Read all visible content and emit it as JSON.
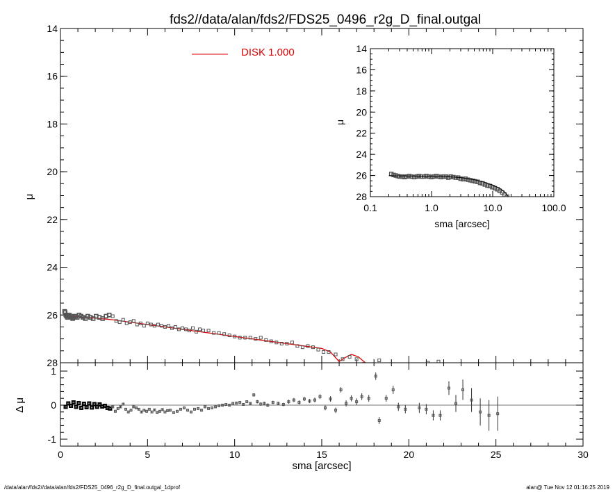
{
  "title": "fds2//data/alan/fds2/FDS25_0496_r2g_D_final.outgal",
  "footer": {
    "left": "/data/alan/fds2//data/alan/fds2/FDS25_0496_r2g_D_final.outgal_1dprof",
    "right": "alan@  Tue Nov 12 01:16:25 2019"
  },
  "colors": {
    "model": "#dd0000",
    "data": "#555555",
    "frame": "#000000"
  },
  "chart_data": [
    {
      "type": "scatter",
      "panel": "main",
      "xlabel": "",
      "ylabel": "μ",
      "xlim": [
        0,
        30
      ],
      "ylim": [
        28,
        14
      ],
      "yticks": [
        "14",
        "16",
        "18",
        "20",
        "22",
        "24",
        "26",
        "28"
      ],
      "legend": {
        "label": "DISK  1.000",
        "color": "#dd0000",
        "placement": "top-center"
      },
      "series": [
        {
          "x": [
            0.24,
            0.27,
            0.31,
            0.35,
            0.4,
            0.45,
            0.5,
            0.56,
            0.63,
            0.7,
            0.78,
            0.87,
            0.96,
            1.07,
            1.18,
            1.3,
            1.43,
            1.57,
            1.72,
            1.88,
            2.05,
            2.23,
            2.42,
            2.62,
            2.8,
            3.0,
            3.2,
            3.4,
            3.6,
            3.8,
            4.0,
            4.2,
            4.4,
            4.6,
            4.8,
            5.0,
            5.2,
            5.4,
            5.6,
            5.8,
            6.0,
            6.2,
            6.4,
            6.6,
            6.8,
            7.0,
            7.2,
            7.4,
            7.6,
            7.8,
            8.0,
            8.2,
            8.5,
            8.8,
            9.1,
            9.4,
            9.7,
            10.0,
            10.3,
            10.6,
            10.9,
            11.2,
            11.5,
            11.8,
            12.1,
            12.4,
            12.7,
            13.0,
            13.3,
            13.6,
            13.9,
            14.2,
            14.5,
            14.8,
            15.1,
            15.4,
            15.8,
            16.2,
            16.6,
            17.0,
            17.4,
            17.8,
            18.3,
            18.8,
            19.4,
            19.9,
            20.5,
            21.1,
            21.7
          ],
          "y": [
            25.85,
            25.9,
            26.0,
            26.05,
            26.1,
            26.05,
            26.0,
            26.1,
            26.05,
            26.15,
            26.1,
            26.05,
            26.1,
            26.0,
            26.05,
            26.1,
            26.15,
            26.05,
            26.1,
            26.15,
            26.05,
            26.1,
            26.15,
            26.05,
            26.0,
            26.05,
            26.25,
            26.3,
            26.2,
            26.35,
            26.3,
            26.25,
            26.4,
            26.35,
            26.45,
            26.35,
            26.4,
            26.45,
            26.4,
            26.45,
            26.5,
            26.45,
            26.55,
            26.5,
            26.6,
            26.55,
            26.6,
            26.65,
            26.55,
            26.7,
            26.6,
            26.65,
            26.65,
            26.75,
            26.75,
            26.8,
            26.85,
            26.9,
            26.95,
            26.95,
            26.95,
            27.0,
            26.95,
            27.05,
            27.1,
            27.15,
            27.2,
            27.2,
            27.15,
            27.3,
            27.35,
            27.3,
            27.35,
            27.45,
            27.55,
            27.55,
            27.65,
            27.85,
            27.75,
            27.85,
            28.05,
            28.25,
            27.9,
            28.1,
            28.25,
            28.3,
            28.4,
            28.0,
            27.95
          ]
        }
      ],
      "model": {
        "x": [
          0.2,
          1,
          2,
          3,
          4,
          5,
          6,
          7,
          8,
          9,
          10,
          11,
          12,
          13,
          14,
          15,
          15.5,
          16.0,
          16.3,
          16.7,
          17.1,
          17.5,
          18.0
        ],
        "y": [
          26.02,
          26.08,
          26.13,
          26.2,
          26.3,
          26.4,
          26.5,
          26.6,
          26.7,
          26.8,
          26.9,
          27.0,
          27.1,
          27.2,
          27.3,
          27.4,
          27.55,
          27.95,
          27.8,
          27.65,
          27.75,
          28.0,
          28.5
        ]
      }
    },
    {
      "type": "scatter",
      "panel": "residual",
      "xlabel": "sma [arcsec]",
      "ylabel": "Δ μ",
      "xlim": [
        0,
        30
      ],
      "ylim": [
        -1.1,
        1.1
      ],
      "xticks": [
        "0",
        "5",
        "10",
        "15",
        "20",
        "25",
        "30"
      ],
      "yticks": [
        "1",
        "0",
        "-1"
      ],
      "series": [
        {
          "x": [
            0.3,
            0.45,
            0.6,
            0.75,
            0.9,
            1.05,
            1.2,
            1.35,
            1.5,
            1.65,
            1.8,
            1.95,
            2.1,
            2.25,
            2.4,
            2.55,
            2.7,
            2.85,
            3.0,
            3.15,
            3.3,
            3.45,
            3.6,
            3.75,
            3.9,
            4.05,
            4.2,
            4.35,
            4.5,
            4.65,
            4.8,
            4.95,
            5.1,
            5.25,
            5.4,
            5.55,
            5.7,
            5.85,
            6.0,
            6.15,
            6.3,
            6.5,
            6.7,
            6.9,
            7.1,
            7.3,
            7.5,
            7.7,
            7.9,
            8.1,
            8.3,
            8.5,
            8.7,
            8.9,
            9.1,
            9.3,
            9.5,
            9.7,
            9.9,
            10.1,
            10.3,
            10.5,
            10.7,
            10.9,
            11.1,
            11.3,
            11.5,
            11.7,
            11.9,
            12.2,
            12.5,
            12.8,
            13.1,
            13.4,
            13.7,
            14.0,
            14.3,
            14.6,
            14.9,
            15.2,
            15.5,
            15.8,
            16.1,
            16.4,
            16.7,
            17.0,
            17.3,
            17.7,
            18.1,
            18.3,
            18.7,
            19.1,
            19.4,
            19.8,
            20.6,
            21.0,
            21.4,
            21.8,
            22.3,
            22.7,
            23.1,
            23.6,
            24.1,
            24.6,
            25.1
          ],
          "y": [
            -0.05,
            0.05,
            -0.02,
            0.08,
            -0.05,
            0.06,
            -0.08,
            0.04,
            -0.06,
            0.05,
            -0.07,
            0.03,
            -0.05,
            0.02,
            -0.04,
            -0.02,
            -0.08,
            -0.1,
            -0.05,
            -0.18,
            -0.1,
            -0.05,
            0.03,
            -0.12,
            -0.2,
            -0.15,
            -0.05,
            -0.08,
            -0.12,
            -0.2,
            -0.15,
            -0.18,
            -0.12,
            -0.2,
            -0.14,
            -0.22,
            -0.18,
            -0.13,
            -0.2,
            -0.16,
            -0.15,
            -0.22,
            -0.18,
            -0.12,
            -0.08,
            -0.15,
            -0.2,
            -0.12,
            -0.1,
            -0.15,
            -0.05,
            -0.1,
            -0.08,
            -0.05,
            -0.02,
            0.0,
            0.02,
            0.0,
            0.05,
            0.06,
            0.08,
            0.02,
            0.1,
            0.05,
            0.3,
            0.1,
            0.03,
            0.05,
            0.0,
            0.08,
            0.05,
            0.02,
            0.1,
            0.15,
            0.08,
            0.18,
            0.12,
            0.15,
            0.25,
            -0.08,
            0.18,
            -0.15,
            0.45,
            0.05,
            0.2,
            0.1,
            0.25,
            0.2,
            0.85,
            -0.45,
            0.2,
            0.45,
            -0.05,
            -0.12,
            -0.08,
            -0.12,
            -0.3,
            -0.3,
            0.5,
            0.05,
            0.45,
            0.15,
            -0.2,
            -0.3,
            -0.25
          ],
          "err": [
            0.03,
            0.03,
            0.03,
            0.03,
            0.03,
            0.03,
            0.03,
            0.03,
            0.03,
            0.03,
            0.03,
            0.03,
            0.03,
            0.03,
            0.03,
            0.03,
            0.03,
            0.03,
            0.03,
            0.03,
            0.03,
            0.03,
            0.03,
            0.03,
            0.03,
            0.03,
            0.03,
            0.03,
            0.03,
            0.03,
            0.03,
            0.03,
            0.03,
            0.03,
            0.03,
            0.03,
            0.03,
            0.03,
            0.03,
            0.03,
            0.03,
            0.03,
            0.03,
            0.03,
            0.03,
            0.03,
            0.03,
            0.03,
            0.03,
            0.03,
            0.03,
            0.03,
            0.03,
            0.03,
            0.04,
            0.04,
            0.04,
            0.04,
            0.04,
            0.04,
            0.04,
            0.04,
            0.04,
            0.04,
            0.05,
            0.05,
            0.05,
            0.05,
            0.05,
            0.05,
            0.05,
            0.05,
            0.06,
            0.06,
            0.06,
            0.06,
            0.06,
            0.07,
            0.07,
            0.07,
            0.08,
            0.08,
            0.08,
            0.09,
            0.09,
            0.1,
            0.1,
            0.1,
            0.11,
            0.1,
            0.1,
            0.12,
            0.12,
            0.12,
            0.15,
            0.15,
            0.15,
            0.15,
            0.2,
            0.25,
            0.3,
            0.35,
            0.4,
            0.45,
            0.5
          ]
        }
      ]
    },
    {
      "type": "scatter",
      "panel": "inset",
      "xlabel": "sma [arcsec]",
      "ylabel": "μ",
      "xscale": "log",
      "xlim": [
        0.1,
        100
      ],
      "ylim": [
        28,
        14
      ],
      "xticks": [
        "0.1",
        "1.0",
        "10.0",
        "100.0"
      ],
      "yticks": [
        "14",
        "16",
        "18",
        "20",
        "22",
        "24",
        "26",
        "28"
      ],
      "series": [
        {
          "x": [
            0.22,
            0.24,
            0.26,
            0.28,
            0.3,
            0.33,
            0.36,
            0.39,
            0.43,
            0.47,
            0.52,
            0.57,
            0.62,
            0.68,
            0.75,
            0.82,
            0.9,
            0.99,
            1.08,
            1.19,
            1.3,
            1.43,
            1.57,
            1.72,
            1.88,
            2.06,
            2.26,
            2.48,
            2.72,
            2.98,
            3.27,
            3.58,
            3.93,
            4.31,
            4.72,
            5.18,
            5.68,
            6.22,
            6.82,
            7.48,
            8.2,
            8.99,
            9.86,
            10.8,
            11.9,
            13.0,
            14.3,
            15.6,
            17.2,
            18.8
          ],
          "y": [
            25.85,
            25.95,
            26.0,
            26.05,
            26.1,
            26.1,
            26.15,
            26.1,
            26.05,
            26.1,
            26.15,
            26.1,
            26.05,
            26.1,
            26.1,
            26.05,
            26.1,
            26.15,
            26.1,
            26.05,
            26.1,
            26.15,
            26.1,
            26.1,
            26.2,
            26.1,
            26.15,
            26.2,
            26.2,
            26.3,
            26.35,
            26.3,
            26.4,
            26.45,
            26.5,
            26.55,
            26.6,
            26.7,
            26.75,
            26.85,
            26.95,
            27.0,
            27.1,
            27.2,
            27.3,
            27.45,
            27.6,
            27.8,
            28.0,
            28.2
          ]
        }
      ],
      "model": {
        "x": [
          0.2,
          0.5,
          1,
          2,
          3,
          5,
          7,
          10,
          13,
          16,
          19
        ],
        "y": [
          26.02,
          26.05,
          26.08,
          26.13,
          26.2,
          26.4,
          26.6,
          26.9,
          27.2,
          27.6,
          28.2
        ]
      }
    }
  ]
}
